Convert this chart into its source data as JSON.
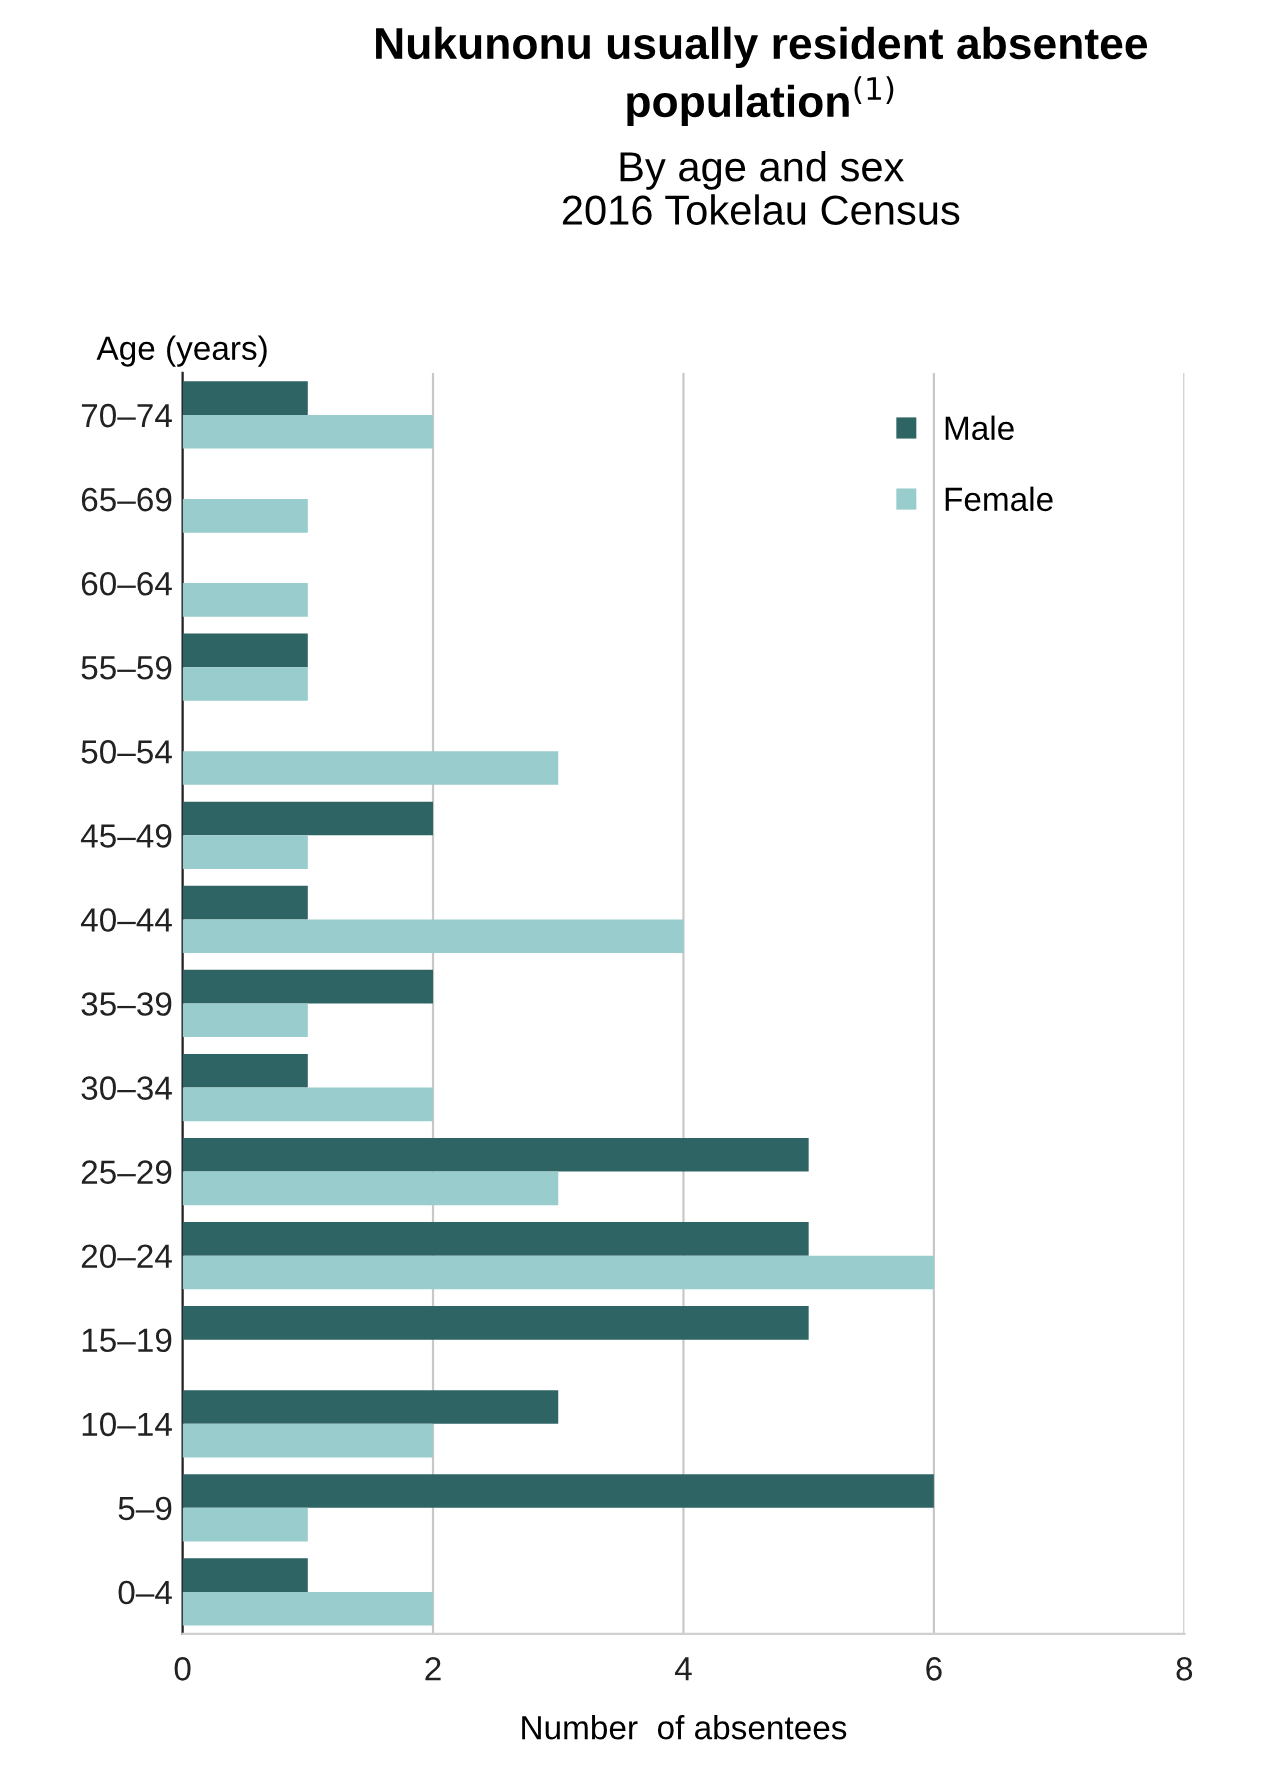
{
  "chart_data": {
    "type": "bar",
    "orientation": "horizontal",
    "title": "Nukunonu usually resident absentee\npopulation$^{(1)}$",
    "subtitle": "By age and sex\n2016 Tokelau Census",
    "xlabel": "Number  of absentees",
    "ylabel": "Age (years)",
    "categories": [
      "70–74",
      "65–69",
      "60–64",
      "55–59",
      "50–54",
      "45–49",
      "40–44",
      "35–39",
      "30–34",
      "25–29",
      "20–24",
      "15–19",
      "10–14",
      "5–9",
      "0–4"
    ],
    "series": [
      {
        "name": "Male",
        "color": "#2f6465",
        "values": [
          1,
          null,
          null,
          1,
          null,
          2,
          1,
          2,
          1,
          5,
          5,
          5,
          3,
          6,
          1
        ]
      },
      {
        "name": "Female",
        "color": "#99cccc",
        "values": [
          2,
          1,
          1,
          1,
          3,
          1,
          4,
          1,
          2,
          3,
          6,
          null,
          2,
          1,
          2
        ]
      }
    ],
    "xlim": [
      0,
      8
    ],
    "xticks": [
      0,
      2,
      4,
      6,
      8
    ],
    "grid": "x",
    "legend": "top right"
  }
}
